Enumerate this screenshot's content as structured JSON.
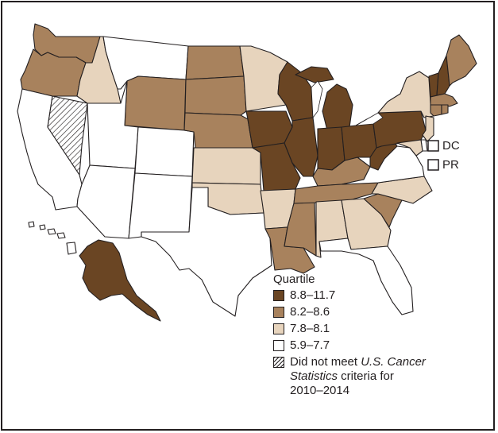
{
  "colors": {
    "q1": "#ffffff",
    "q2": "#e7d4bd",
    "q3": "#a8825d",
    "q4": "#6a4523",
    "na": "hatched",
    "outline": "#231f20"
  },
  "map": {
    "type": "choropleth",
    "region": "United States",
    "state_quartiles": {
      "WA": "q3",
      "OR": "q3",
      "CA": "q1",
      "NV": "na",
      "ID": "q2",
      "MT": "q1",
      "WY": "q3",
      "UT": "q1",
      "AZ": "q1",
      "CO": "q1",
      "NM": "q1",
      "ND": "q3",
      "SD": "q3",
      "NE": "q3",
      "KS": "q2",
      "OK": "q2",
      "TX": "q1",
      "MN": "q2",
      "IA": "q4",
      "MO": "q4",
      "AR": "q2",
      "LA": "q3",
      "WI": "q4",
      "IL": "q4",
      "MS": "q3",
      "MI": "q4",
      "IN": "q4",
      "KY": "q3",
      "TN": "q3",
      "AL": "q2",
      "OH": "q4",
      "WV": "q4",
      "GA": "q2",
      "FL": "q1",
      "SC": "q3",
      "NC": "q2",
      "VA": "q1",
      "PA": "q4",
      "NY": "q2",
      "ME": "q3",
      "NH": "q4",
      "VT": "q4",
      "MA": "q3",
      "CT": "q3",
      "RI": "q3",
      "NJ": "q2",
      "DE": "q1",
      "MD": "q2",
      "AK": "q4",
      "HI": "q1"
    }
  },
  "territories": [
    {
      "label": "DC",
      "quartile": "q1"
    },
    {
      "label": "PR",
      "quartile": "q1"
    }
  ],
  "legend": {
    "title": "Quartile",
    "items": [
      {
        "label": "8.8–11.7",
        "key": "q4"
      },
      {
        "label": "8.2–8.6",
        "key": "q3"
      },
      {
        "label": "7.8–8.1",
        "key": "q2"
      },
      {
        "label": "5.9–7.7",
        "key": "q1"
      }
    ],
    "na": {
      "pre": "Did not meet ",
      "italic1": "U.S. Cancer",
      "italic2": "Statistics",
      "post1": " criteria for",
      "post2": "2010–2014"
    }
  }
}
